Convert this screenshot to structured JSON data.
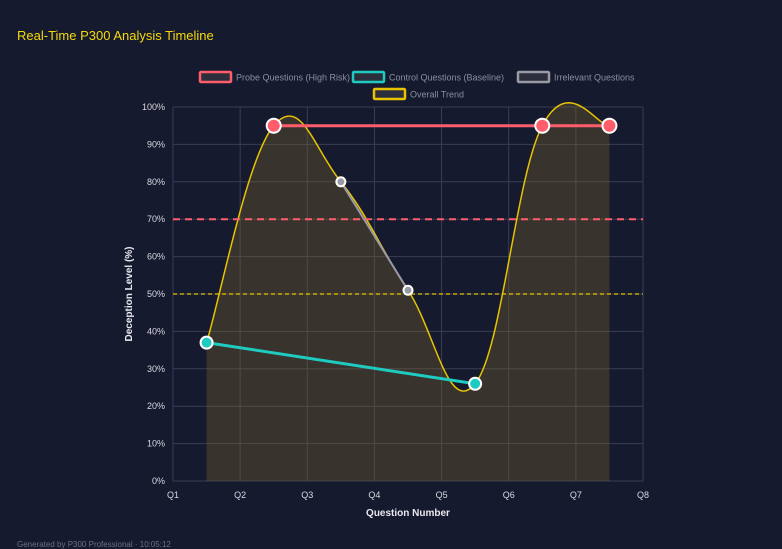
{
  "title": "Real-Time P300 Analysis Timeline",
  "footer": "Generated by P300 Professional · 10:05:12",
  "chart_data": {
    "type": "line",
    "xlabel": "Question Number",
    "ylabel": "Deception Level (%)",
    "x_tick_labels": [
      "Q1",
      "Q2",
      "Q3",
      "Q4",
      "Q5",
      "Q6",
      "Q7",
      "Q8"
    ],
    "ylim": [
      0,
      100
    ],
    "y_ticks": [
      0,
      10,
      20,
      30,
      40,
      50,
      60,
      70,
      80,
      90,
      100
    ],
    "y_tick_suffix": "%",
    "grid": true,
    "legend_placement": "top",
    "series": [
      {
        "name": "Probe Questions (High Risk)",
        "color": "#ff5c6c",
        "x": [
          1.5,
          5.5,
          6.5
        ],
        "values": [
          95,
          95,
          95
        ]
      },
      {
        "name": "Control Questions (Baseline)",
        "color": "#1ecbc0",
        "x": [
          0.5,
          4.5
        ],
        "values": [
          37,
          26
        ]
      },
      {
        "name": "Irrelevant Questions",
        "color": "#9a9aa6",
        "x": [
          2.5,
          3.5
        ],
        "values": [
          80,
          51
        ]
      },
      {
        "name": "Overall Trend",
        "color": "#e8c400",
        "fill": "rgba(120,100,40,0.35)",
        "x": [
          0.5,
          1.5,
          2.5,
          3.5,
          4.5,
          5.5,
          6.5
        ],
        "values": [
          37,
          95,
          80,
          51,
          26,
          95,
          95
        ]
      }
    ],
    "thresholds": [
      {
        "value": 70,
        "color": "#ff5c6c",
        "style": "dashed"
      },
      {
        "value": 50,
        "color": "#e8c400",
        "style": "dashed"
      }
    ]
  }
}
